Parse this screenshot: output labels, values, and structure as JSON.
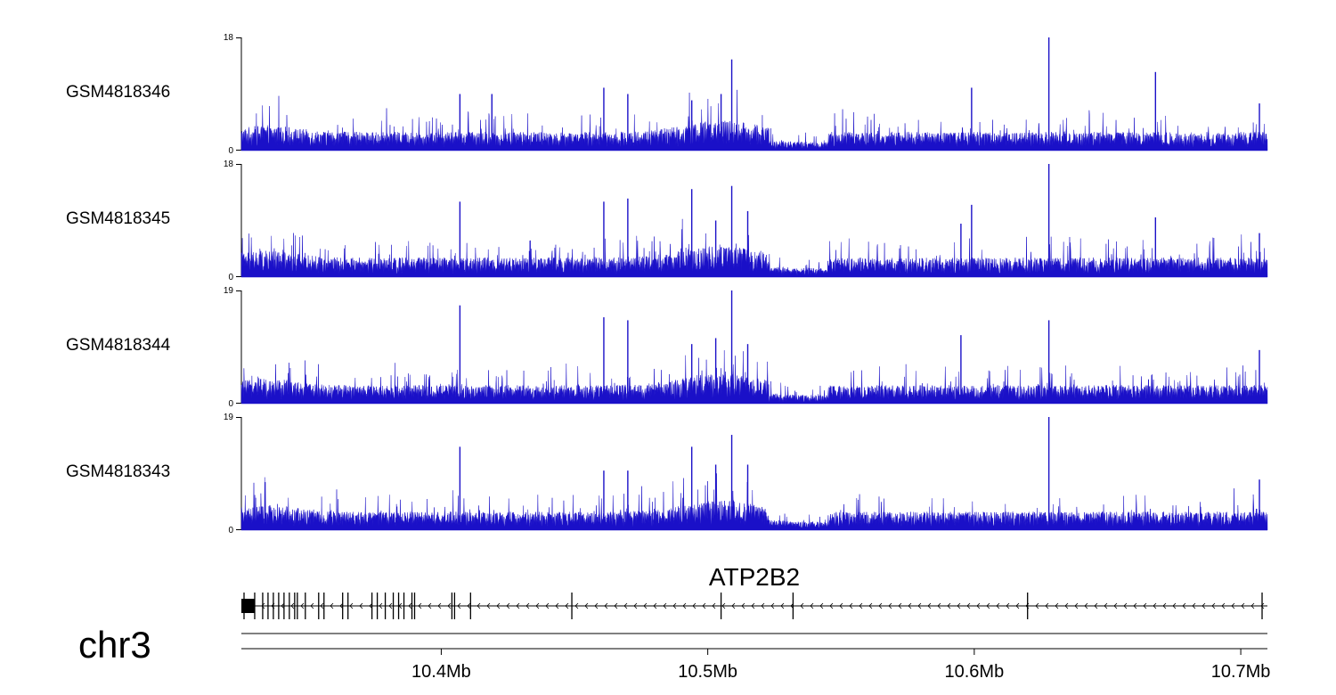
{
  "chart_data": {
    "type": "area",
    "chromosome": "chr3",
    "gene": {
      "name": "ATP2B2",
      "strand": "-"
    },
    "x_axis": {
      "unit": "Mb",
      "range": [
        10.325,
        10.71
      ],
      "ticks": [
        10.4,
        10.5,
        10.6,
        10.7
      ],
      "tick_labels": [
        "10.4Mb",
        "10.5Mb",
        "10.6Mb",
        "10.7Mb"
      ]
    },
    "signal_color": "#1a10c8",
    "tracks": [
      {
        "name": "GSM4818346",
        "ymin": 0,
        "ymax": 18,
        "ymin_label": "0",
        "ymax_label": "18",
        "baseline": 2.2,
        "peaks": [
          {
            "x": 10.407,
            "y": 9
          },
          {
            "x": 10.419,
            "y": 9
          },
          {
            "x": 10.461,
            "y": 10
          },
          {
            "x": 10.47,
            "y": 9
          },
          {
            "x": 10.494,
            "y": 8
          },
          {
            "x": 10.505,
            "y": 9
          },
          {
            "x": 10.509,
            "y": 14.5
          },
          {
            "x": 10.599,
            "y": 10
          },
          {
            "x": 10.628,
            "y": 18
          },
          {
            "x": 10.668,
            "y": 12.5
          },
          {
            "x": 10.707,
            "y": 7.5
          }
        ]
      },
      {
        "name": "GSM4818345",
        "ymin": 0,
        "ymax": 18,
        "ymin_label": "0",
        "ymax_label": "18",
        "baseline": 2.3,
        "peaks": [
          {
            "x": 10.407,
            "y": 12
          },
          {
            "x": 10.461,
            "y": 12
          },
          {
            "x": 10.47,
            "y": 12.5
          },
          {
            "x": 10.494,
            "y": 14
          },
          {
            "x": 10.503,
            "y": 9
          },
          {
            "x": 10.509,
            "y": 14.5
          },
          {
            "x": 10.515,
            "y": 10.5
          },
          {
            "x": 10.595,
            "y": 8.5
          },
          {
            "x": 10.599,
            "y": 11.5
          },
          {
            "x": 10.628,
            "y": 18
          },
          {
            "x": 10.668,
            "y": 9.5
          },
          {
            "x": 10.707,
            "y": 7
          }
        ]
      },
      {
        "name": "GSM4818344",
        "ymin": 0,
        "ymax": 19,
        "ymin_label": "0",
        "ymax_label": "19",
        "baseline": 2.3,
        "peaks": [
          {
            "x": 10.407,
            "y": 16.5
          },
          {
            "x": 10.461,
            "y": 14.5
          },
          {
            "x": 10.47,
            "y": 14
          },
          {
            "x": 10.494,
            "y": 10
          },
          {
            "x": 10.503,
            "y": 11
          },
          {
            "x": 10.509,
            "y": 19
          },
          {
            "x": 10.515,
            "y": 10
          },
          {
            "x": 10.595,
            "y": 11.5
          },
          {
            "x": 10.628,
            "y": 14
          },
          {
            "x": 10.707,
            "y": 9
          }
        ]
      },
      {
        "name": "GSM4818343",
        "ymin": 0,
        "ymax": 19,
        "ymin_label": "0",
        "ymax_label": "19",
        "baseline": 2.3,
        "peaks": [
          {
            "x": 10.407,
            "y": 14
          },
          {
            "x": 10.461,
            "y": 10
          },
          {
            "x": 10.47,
            "y": 10
          },
          {
            "x": 10.494,
            "y": 14
          },
          {
            "x": 10.503,
            "y": 11
          },
          {
            "x": 10.509,
            "y": 16
          },
          {
            "x": 10.515,
            "y": 11
          },
          {
            "x": 10.628,
            "y": 19
          },
          {
            "x": 10.707,
            "y": 8.5
          }
        ]
      }
    ],
    "exons": [
      10.326,
      10.33,
      10.333,
      10.335,
      10.337,
      10.339,
      10.341,
      10.343,
      10.345,
      10.346,
      10.349,
      10.354,
      10.356,
      10.363,
      10.365,
      10.374,
      10.376,
      10.379,
      10.382,
      10.384,
      10.386,
      10.389,
      10.39,
      10.404,
      10.405,
      10.411,
      10.449,
      10.505,
      10.532,
      10.62,
      10.708
    ]
  }
}
